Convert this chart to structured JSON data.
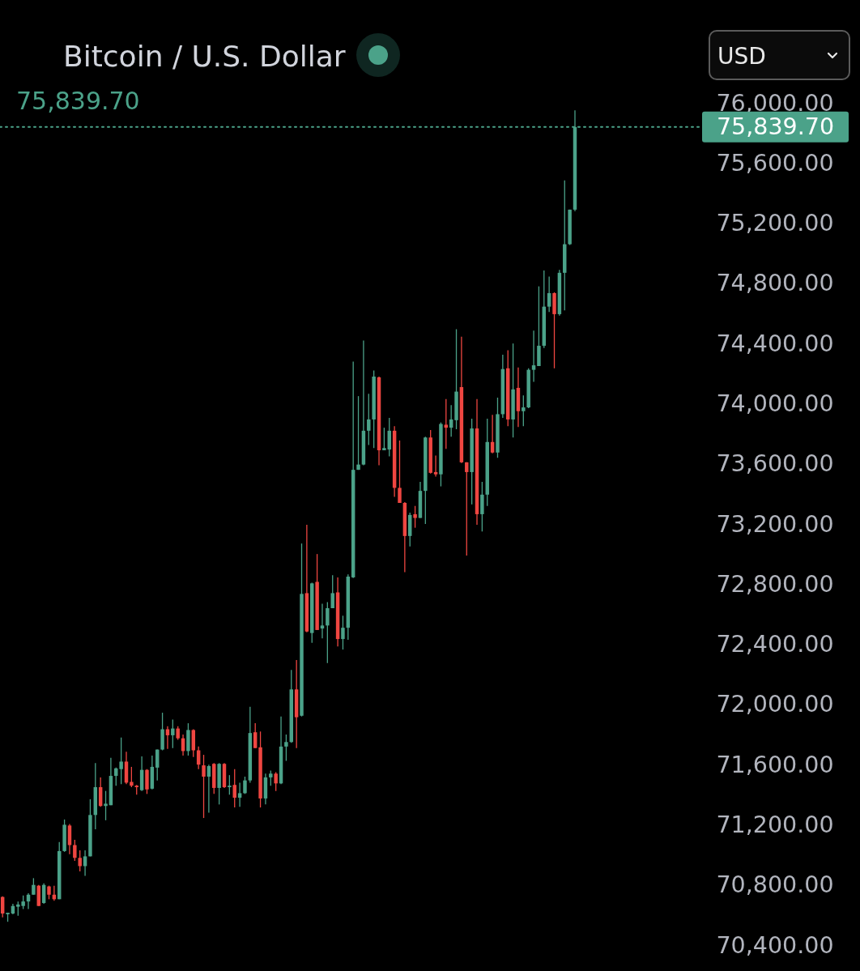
{
  "chart_data": {
    "type": "candlestick",
    "title": "Bitcoin / U.S. Dollar",
    "subtitle": "75,839.70",
    "annotations": [
      "USD"
    ],
    "categories": [
      null,
      null,
      null,
      null,
      null,
      null,
      null,
      null,
      null,
      null,
      null,
      null,
      null,
      null,
      null,
      null,
      null,
      null,
      null,
      null,
      null,
      null,
      null,
      null,
      null,
      null,
      null,
      null,
      null,
      null,
      null,
      null,
      null,
      null,
      null,
      null,
      null,
      null,
      null,
      null,
      null,
      null,
      null,
      null,
      null,
      null,
      null,
      null,
      null,
      null,
      null,
      null,
      null,
      null,
      null,
      null,
      null,
      null,
      null,
      null,
      null,
      null,
      null,
      null,
      null,
      null,
      null,
      null,
      null,
      null,
      null,
      null,
      null,
      null,
      null,
      null,
      null,
      null,
      null,
      null,
      null,
      null,
      null,
      null,
      null,
      null,
      null,
      null,
      null,
      null,
      null,
      null,
      null,
      null,
      null,
      null,
      null,
      null,
      null,
      null,
      null,
      null,
      null,
      null,
      null,
      null,
      null,
      null,
      null,
      null,
      null,
      null,
      null,
      null,
      null,
      null,
      null,
      null,
      null,
      null,
      null,
      null,
      null,
      null,
      null,
      null,
      null,
      null,
      null,
      null,
      null,
      null,
      null,
      null,
      null,
      null
    ],
    "ohlc": [
      [
        70720,
        70725,
        70585,
        70610
      ],
      [
        70605,
        70615,
        70555,
        70615
      ],
      [
        70610,
        70675,
        70605,
        70660
      ],
      [
        70655,
        70690,
        70595,
        70670
      ],
      [
        70660,
        70730,
        70640,
        70690
      ],
      [
        70690,
        70745,
        70640,
        70735
      ],
      [
        70735,
        70845,
        70735,
        70800
      ],
      [
        70795,
        70800,
        70660,
        70660
      ],
      [
        70680,
        70810,
        70675,
        70800
      ],
      [
        70790,
        70795,
        70705,
        70735
      ],
      [
        70735,
        70795,
        70695,
        70705
      ],
      [
        70705,
        71085,
        70705,
        71025
      ],
      [
        71025,
        71235,
        71020,
        71200
      ],
      [
        71195,
        71205,
        71005,
        71065
      ],
      [
        71065,
        71100,
        70960,
        70980
      ],
      [
        70980,
        71030,
        70890,
        70925
      ],
      [
        70925,
        71030,
        70860,
        70990
      ],
      [
        70990,
        71370,
        70990,
        71265
      ],
      [
        71265,
        71610,
        71170,
        71450
      ],
      [
        71450,
        71515,
        71320,
        71325
      ],
      [
        71325,
        71425,
        71230,
        71340
      ],
      [
        71330,
        71645,
        71330,
        71525
      ],
      [
        71525,
        71580,
        71460,
        71575
      ],
      [
        71570,
        71780,
        71470,
        71620
      ],
      [
        71620,
        71685,
        71470,
        71480
      ],
      [
        71485,
        71585,
        71450,
        71460
      ],
      [
        71460,
        71465,
        71400,
        71450
      ],
      [
        71430,
        71655,
        71425,
        71565
      ],
      [
        71565,
        71570,
        71405,
        71435
      ],
      [
        71440,
        71660,
        71435,
        71585
      ],
      [
        71580,
        71700,
        71495,
        71700
      ],
      [
        71700,
        71945,
        71695,
        71835
      ],
      [
        71835,
        71855,
        71705,
        71795
      ],
      [
        71795,
        71900,
        71710,
        71840
      ],
      [
        71840,
        71855,
        71765,
        71775
      ],
      [
        71775,
        71800,
        71660,
        71690
      ],
      [
        71690,
        71875,
        71660,
        71830
      ],
      [
        71830,
        71835,
        71650,
        71695
      ],
      [
        71695,
        71720,
        71570,
        71600
      ],
      [
        71595,
        71665,
        71245,
        71520
      ],
      [
        71520,
        71600,
        71280,
        71590
      ],
      [
        71605,
        71610,
        71405,
        71445
      ],
      [
        71445,
        71610,
        71335,
        71605
      ],
      [
        71605,
        71610,
        71445,
        71450
      ],
      [
        71450,
        71530,
        71400,
        71460
      ],
      [
        71465,
        71570,
        71315,
        71380
      ],
      [
        71380,
        71480,
        71320,
        71410
      ],
      [
        71410,
        71520,
        71405,
        71495
      ],
      [
        71495,
        71985,
        71480,
        71810
      ],
      [
        71815,
        71875,
        71710,
        71710
      ],
      [
        71715,
        71820,
        71315,
        71375
      ],
      [
        71375,
        71540,
        71335,
        71515
      ],
      [
        71515,
        71560,
        71460,
        71540
      ],
      [
        71540,
        71550,
        71425,
        71475
      ],
      [
        71475,
        71920,
        71470,
        71720
      ],
      [
        71720,
        71800,
        71625,
        71750
      ],
      [
        71750,
        72230,
        71745,
        72100
      ],
      [
        72100,
        72295,
        71710,
        71915
      ],
      [
        71925,
        73070,
        71920,
        72735
      ],
      [
        72740,
        73195,
        72480,
        72485
      ],
      [
        72475,
        72810,
        72410,
        72805
      ],
      [
        72815,
        73000,
        72495,
        72495
      ],
      [
        72505,
        72670,
        72440,
        72525
      ],
      [
        72525,
        72680,
        72275,
        72640
      ],
      [
        72640,
        72860,
        72640,
        72740
      ],
      [
        72745,
        72845,
        72385,
        72435
      ],
      [
        72435,
        72590,
        72365,
        72510
      ],
      [
        72510,
        72865,
        72430,
        72850
      ],
      [
        72845,
        74280,
        72840,
        73560
      ],
      [
        73560,
        74050,
        73560,
        73595
      ],
      [
        73595,
        74420,
        73590,
        73820
      ],
      [
        73820,
        74065,
        73725,
        73895
      ],
      [
        73895,
        74220,
        73705,
        74180
      ],
      [
        74175,
        74180,
        73590,
        73690
      ],
      [
        73690,
        73840,
        73690,
        73705
      ],
      [
        73695,
        73905,
        73650,
        73820
      ],
      [
        73820,
        73850,
        73380,
        73440
      ],
      [
        73440,
        73755,
        73340,
        73340
      ],
      [
        73340,
        73345,
        72880,
        73120
      ],
      [
        73120,
        73275,
        73050,
        73260
      ],
      [
        73265,
        73320,
        73175,
        73240
      ],
      [
        73240,
        73480,
        73240,
        73420
      ],
      [
        73420,
        73780,
        73200,
        73775
      ],
      [
        73775,
        73825,
        73535,
        73540
      ],
      [
        73545,
        73655,
        73515,
        73530
      ],
      [
        73530,
        73875,
        73450,
        73865
      ],
      [
        73860,
        74030,
        73700,
        73840
      ],
      [
        73840,
        73990,
        73780,
        73895
      ],
      [
        73890,
        74495,
        73830,
        74080
      ],
      [
        74110,
        74445,
        73605,
        73610
      ],
      [
        73610,
        73610,
        72990,
        73545
      ],
      [
        73545,
        73900,
        73330,
        73835
      ],
      [
        73835,
        74030,
        73195,
        73265
      ],
      [
        73265,
        73480,
        73150,
        73395
      ],
      [
        73395,
        73900,
        73320,
        73745
      ],
      [
        73745,
        73925,
        73670,
        73675
      ],
      [
        73675,
        74040,
        73640,
        73930
      ],
      [
        73930,
        74325,
        73905,
        74230
      ],
      [
        74235,
        74355,
        73850,
        73895
      ],
      [
        73895,
        74400,
        73775,
        74095
      ],
      [
        74105,
        74240,
        73845,
        73950
      ],
      [
        73950,
        74055,
        73850,
        73975
      ],
      [
        73975,
        74235,
        73970,
        74225
      ],
      [
        74225,
        74485,
        74145,
        74255
      ],
      [
        74250,
        74780,
        74250,
        74385
      ],
      [
        74385,
        74885,
        74370,
        74645
      ],
      [
        74645,
        74845,
        74610,
        74735
      ],
      [
        74735,
        74740,
        74235,
        74595
      ],
      [
        74595,
        74890,
        74585,
        74870
      ],
      [
        74870,
        75485,
        74620,
        75060
      ],
      [
        75060,
        75290,
        75055,
        75290
      ],
      [
        75290,
        75950,
        75280,
        75839.7
      ],
      null,
      null,
      null,
      null,
      null,
      null,
      null,
      null,
      null,
      null,
      null,
      null,
      null,
      null,
      null,
      null,
      null,
      null,
      null,
      null,
      null,
      null,
      null,
      null
    ],
    "colors": [
      "#ef4641",
      "#4ba289",
      "#4ba289",
      "#4ba289",
      "#4ba289",
      "#4ba289",
      "#4ba289",
      "#ef4641",
      "#4ba289",
      "#ef4641",
      "#ef4641",
      "#4ba289",
      "#4ba289",
      "#ef4641",
      "#ef4641",
      "#ef4641",
      "#4ba289",
      "#4ba289",
      "#4ba289",
      "#ef4641",
      "#4ba289",
      "#4ba289",
      "#4ba289",
      "#4ba289",
      "#ef4641",
      "#ef4641",
      "#ef4641",
      "#4ba289",
      "#ef4641",
      "#4ba289",
      "#4ba289",
      "#4ba289",
      "#ef4641",
      "#4ba289",
      "#ef4641",
      "#ef4641",
      "#4ba289",
      "#ef4641",
      "#ef4641",
      "#ef4641",
      "#4ba289",
      "#ef4641",
      "#4ba289",
      "#ef4641",
      "#4ba289",
      "#ef4641",
      "#4ba289",
      "#4ba289",
      "#4ba289",
      "#ef4641",
      "#ef4641",
      "#4ba289",
      "#4ba289",
      "#ef4641",
      "#4ba289",
      "#4ba289",
      "#4ba289",
      "#ef4641",
      "#4ba289",
      "#ef4641",
      "#4ba289",
      "#ef4641",
      "#4ba289",
      "#4ba289",
      "#4ba289",
      "#ef4641",
      "#4ba289",
      "#4ba289",
      "#4ba289",
      "#4ba289",
      "#4ba289",
      "#4ba289",
      "#4ba289",
      "#ef4641",
      "#4ba289",
      "#4ba289",
      "#ef4641",
      "#ef4641",
      "#ef4641",
      "#4ba289",
      "#ef4641",
      "#4ba289",
      "#4ba289",
      "#ef4641",
      "#ef4641",
      "#4ba289",
      "#ef4641",
      "#4ba289",
      "#4ba289",
      "#ef4641",
      "#ef4641",
      "#4ba289",
      "#ef4641",
      "#4ba289",
      "#4ba289",
      "#ef4641",
      "#4ba289",
      "#4ba289",
      "#ef4641",
      "#4ba289",
      "#ef4641",
      "#4ba289",
      "#4ba289",
      "#4ba289",
      "#4ba289",
      "#4ba289",
      "#4ba289",
      "#ef4641",
      "#4ba289",
      "#4ba289",
      "#4ba289",
      "#4ba289",
      null,
      null,
      null,
      null,
      null,
      null,
      null,
      null,
      null,
      null,
      null,
      null,
      null,
      null,
      null,
      null,
      null,
      null,
      null,
      null,
      null,
      null,
      null,
      null
    ],
    "ylim": [
      70220,
      76000
    ],
    "yticks": [
      {
        "value": 70400,
        "label": "70,400.00"
      },
      {
        "value": 70800,
        "label": "70,800.00"
      },
      {
        "value": 71200,
        "label": "71,200.00"
      },
      {
        "value": 71600,
        "label": "71,600.00"
      },
      {
        "value": 72000,
        "label": "72,000.00"
      },
      {
        "value": 72400,
        "label": "72,400.00"
      },
      {
        "value": 72800,
        "label": "72,800.00"
      },
      {
        "value": 73200,
        "label": "73,200.00"
      },
      {
        "value": 73600,
        "label": "73,600.00"
      },
      {
        "value": 74000,
        "label": "74,000.00"
      },
      {
        "value": 74400,
        "label": "74,400.00"
      },
      {
        "value": 74800,
        "label": "74,800.00"
      },
      {
        "value": 75200,
        "label": "75,200.00"
      },
      {
        "value": 75600,
        "label": "75,600.00"
      },
      {
        "value": 76000,
        "label": "76,000.00"
      }
    ],
    "ref_lines": [
      {
        "axis": "y",
        "value": 75839.7,
        "label": "75,839.70",
        "color": "#4ba289",
        "line_style": "dotted"
      }
    ],
    "tick_labels": "y"
  }
}
